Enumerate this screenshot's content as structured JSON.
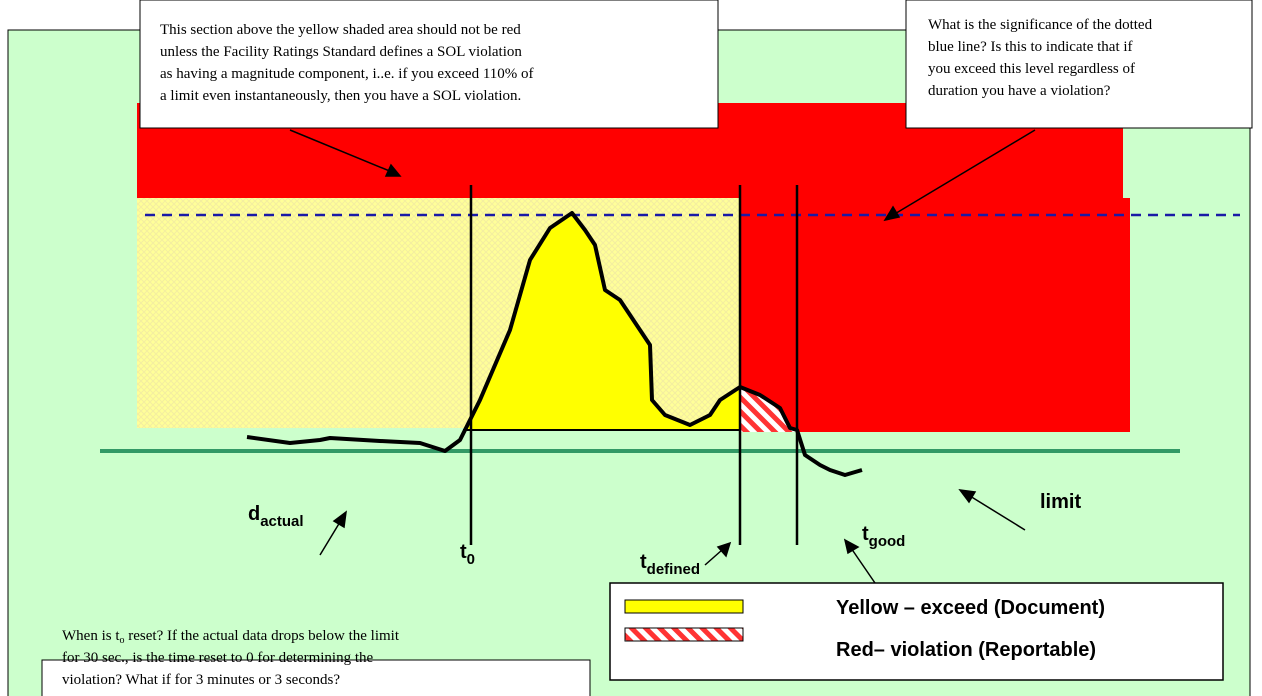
{
  "callout_top_left": {
    "lines": [
      "This section above the yellow shaded area should not be red",
      "unless the Facility Ratings Standard defines a SOL violation",
      "as having a magnitude component, i..e. if you exceed 110% of",
      "a limit even instantaneously, then you have a SOL violation."
    ]
  },
  "callout_top_right": {
    "lines": [
      "What is the significance of the dotted",
      "blue line?  Is this to indicate that if",
      "you exceed this level regardless of",
      "duration you have a violation?"
    ]
  },
  "callout_bottom": {
    "line1_start": "When is t",
    "line1_sub": "o",
    "line1_end": " reset?  If the actual data drops below the limit",
    "lines": [
      "for 30 sec., is the time reset to 0 for determining the",
      "violation?  What if for 3 minutes or 3 seconds?"
    ]
  },
  "labels": {
    "d_actual": {
      "main": "d",
      "sub": "actual"
    },
    "t0": {
      "main": "t",
      "sub": "0"
    },
    "t_defined": {
      "main": "t",
      "sub": "defined"
    },
    "t_good": {
      "main": "t",
      "sub": "good"
    },
    "limit": "limit"
  },
  "legend": [
    {
      "label": "Yellow – exceed (Document)"
    },
    {
      "label": "Red– violation (Reportable)"
    }
  ]
}
